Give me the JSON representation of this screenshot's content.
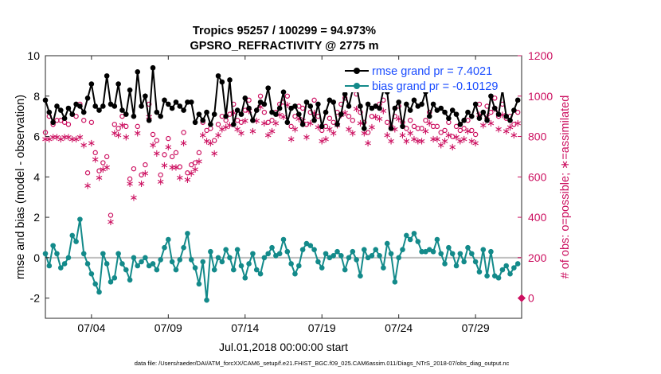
{
  "chart_data": {
    "type": "line",
    "title": "Tropics 95257 / 100299 = 94.973%",
    "subtitle": "GPSRO_REFRACTIVITY @ 2775 m",
    "xlabel": "Jul.01,2018 00:00:00 start",
    "ylabel": "rmse and bias (model - observation)",
    "y2label": "# of obs: o=possible; ∗=assimilated",
    "footer": "data file: /Users/raeder/DAI/ATM_forcXX/CAM6_setup/f.e21.FHIST_BGC.f09_025.CAM6assim.011/Diags_NTrS_2018-07/obs_diag_output.nc",
    "x_ticks": [
      "07/04",
      "07/09",
      "07/14",
      "07/19",
      "07/24",
      "07/29"
    ],
    "x_tick_days": [
      4,
      9,
      14,
      19,
      24,
      29
    ],
    "xlim": [
      1,
      32
    ],
    "ylim": [
      -3,
      10
    ],
    "y_ticks": [
      "-2",
      "0",
      "2",
      "4",
      "6",
      "8",
      "10"
    ],
    "y2lim": [
      -100,
      1200
    ],
    "y2_ticks": [
      "0",
      "200",
      "400",
      "600",
      "800",
      "1000",
      "1200"
    ],
    "legend": [
      {
        "name": "rmse grand pr = 7.4021",
        "color": "#000000"
      },
      {
        "name": "bias grand pr = -0.10129",
        "color": "#138a8a"
      }
    ],
    "colors": {
      "rmse": "#000000",
      "bias": "#138a8a",
      "obs": "#cc1060",
      "zero_line": "#c0c0c0"
    },
    "x": [
      1.0,
      1.25,
      1.5,
      1.75,
      2.0,
      2.25,
      2.5,
      2.75,
      3.0,
      3.25,
      3.5,
      3.75,
      4.0,
      4.25,
      4.5,
      4.75,
      5.0,
      5.25,
      5.5,
      5.75,
      6.0,
      6.25,
      6.5,
      6.75,
      7.0,
      7.25,
      7.5,
      7.75,
      8.0,
      8.25,
      8.5,
      8.75,
      9.0,
      9.25,
      9.5,
      9.75,
      10.0,
      10.25,
      10.5,
      10.75,
      11.0,
      11.25,
      11.5,
      11.75,
      12.0,
      12.25,
      12.5,
      12.75,
      13.0,
      13.25,
      13.5,
      13.75,
      14.0,
      14.25,
      14.5,
      14.75,
      15.0,
      15.25,
      15.5,
      15.75,
      16.0,
      16.25,
      16.5,
      16.75,
      17.0,
      17.25,
      17.5,
      17.75,
      18.0,
      18.25,
      18.5,
      18.75,
      19.0,
      19.25,
      19.5,
      19.75,
      20.0,
      20.25,
      20.5,
      20.75,
      21.0,
      21.25,
      21.5,
      21.75,
      22.0,
      22.25,
      22.5,
      22.75,
      23.0,
      23.25,
      23.5,
      23.75,
      24.0,
      24.25,
      24.5,
      24.75,
      25.0,
      25.25,
      25.5,
      25.75,
      26.0,
      26.25,
      26.5,
      26.75,
      27.0,
      27.25,
      27.5,
      27.75,
      28.0,
      28.25,
      28.5,
      28.75,
      29.0,
      29.25,
      29.5,
      29.75,
      30.0,
      30.25,
      30.5,
      30.75,
      31.0,
      31.25,
      31.5,
      31.75
    ],
    "series": [
      {
        "name": "rmse",
        "values": [
          7.8,
          7.2,
          6.7,
          7.5,
          7.3,
          6.9,
          7.4,
          7.1,
          7.6,
          7.5,
          7.2,
          7.9,
          8.6,
          7.5,
          7.3,
          7.5,
          9.0,
          7.6,
          7.5,
          8.6,
          7.3,
          7.1,
          8.3,
          7.0,
          9.2,
          7.5,
          8.0,
          6.8,
          9.4,
          7.2,
          7.0,
          7.8,
          7.6,
          7.4,
          7.7,
          7.5,
          7.3,
          7.7,
          7.7,
          6.7,
          7.1,
          6.8,
          7.2,
          6.6,
          7.1,
          9.0,
          8.7,
          7.0,
          8.8,
          6.6,
          7.3,
          7.1,
          7.9,
          7.4,
          6.8,
          7.3,
          7.7,
          7.6,
          8.4,
          7.2,
          7.1,
          7.4,
          8.2,
          6.7,
          7.4,
          7.5,
          7.1,
          6.6,
          7.7,
          7.5,
          6.8,
          7.6,
          6.5,
          7.2,
          7.8,
          7.7,
          6.6,
          7.1,
          8.1,
          7.5,
          8.3,
          8.5,
          7.5,
          6.4,
          7.6,
          7.4,
          7.5,
          7.4,
          8.3,
          8.2,
          6.4,
          7.4,
          7.7,
          6.5,
          7.6,
          7.3,
          7.8,
          7.5,
          7.6,
          8.2,
          7.0,
          7.6,
          7.3,
          7.4,
          7.2,
          6.9,
          7.3,
          7.1,
          6.6,
          6.8,
          7.2,
          7.0,
          7.6,
          6.9,
          7.2,
          6.8,
          8.0,
          7.4,
          7.1,
          8.3,
          7.0,
          6.8,
          7.3,
          7.8
        ]
      },
      {
        "name": "bias",
        "values": [
          0.2,
          -0.4,
          0.6,
          0.2,
          -0.5,
          -0.3,
          0.0,
          1.1,
          0.8,
          1.9,
          0.2,
          -0.3,
          -0.8,
          -1.3,
          -1.7,
          0.2,
          -0.3,
          -1.2,
          -1.0,
          0.2,
          -0.3,
          -0.6,
          -1.1,
          0.0,
          -0.4,
          -0.2,
          0.0,
          -0.4,
          -0.3,
          -0.6,
          -0.1,
          0.5,
          0.9,
          -0.2,
          -0.6,
          -0.1,
          0.5,
          1.2,
          -0.1,
          -0.5,
          -1.3,
          -0.2,
          -2.1,
          0.3,
          -0.6,
          0.0,
          -0.2,
          0.4,
          0.0,
          -0.6,
          0.4,
          -0.4,
          -1.0,
          -0.3,
          0.2,
          -0.6,
          -0.8,
          0.0,
          0.2,
          0.5,
          0.1,
          0.2,
          0.9,
          0.3,
          -0.3,
          -0.8,
          -0.4,
          0.4,
          0.7,
          0.6,
          0.4,
          -0.2,
          -0.5,
          0.2,
          0.0,
          0.1,
          0.3,
          0.1,
          -0.6,
          0.0,
          0.3,
          -0.1,
          -0.9,
          0.4,
          0.0,
          0.1,
          0.4,
          0.1,
          -0.5,
          0.7,
          0.2,
          -1.2,
          0.0,
          0.4,
          1.1,
          0.9,
          1.2,
          0.8,
          0.3,
          0.3,
          0.4,
          0.3,
          0.9,
          0.2,
          -0.3,
          0.5,
          0.2,
          -0.4,
          0.2,
          -0.2,
          0.5,
          0.2,
          -0.2,
          -0.7,
          0.4,
          -0.9,
          0.3,
          -0.9,
          -1.0,
          -0.6,
          -0.4,
          -0.8,
          -0.5,
          -0.3
        ]
      }
    ],
    "obs_possible": [
      820,
      900,
      860,
      880,
      880,
      870,
      860,
      910,
      900,
      960,
      880,
      620,
      870,
      720,
      630,
      670,
      700,
      410,
      860,
      840,
      900,
      850,
      590,
      640,
      850,
      610,
      660,
      960,
      810,
      780,
      610,
      710,
      790,
      700,
      720,
      650,
      820,
      620,
      660,
      670,
      720,
      870,
      830,
      840,
      780,
      860,
      900,
      880,
      910,
      960,
      880,
      870,
      930,
      980,
      880,
      930,
      1000,
      920,
      870,
      880,
      920,
      960,
      970,
      1000,
      850,
      900,
      950,
      940,
      860,
      920,
      980,
      900,
      830,
      850,
      890,
      870,
      920,
      960,
      990,
      900,
      880,
      1010,
      920,
      870,
      820,
      900,
      950,
      960,
      980,
      870,
      850,
      900,
      950,
      870,
      840,
      880,
      850,
      840,
      840,
      880,
      920,
      850,
      850,
      820,
      830,
      870,
      800,
      850,
      830,
      840,
      880,
      830,
      810,
      960,
      920,
      950,
      920,
      990,
      900,
      960,
      890,
      900,
      860,
      920
    ],
    "obs_assimilated": [
      790,
      790,
      800,
      800,
      790,
      800,
      800,
      790,
      790,
      800,
      760,
      560,
      770,
      690,
      600,
      640,
      650,
      380,
      820,
      810,
      860,
      800,
      570,
      500,
      820,
      570,
      620,
      900,
      760,
      720,
      580,
      660,
      750,
      650,
      650,
      600,
      770,
      590,
      620,
      640,
      680,
      810,
      780,
      770,
      720,
      810,
      840,
      850,
      860,
      920,
      840,
      820,
      880,
      930,
      830,
      880,
      950,
      870,
      810,
      830,
      870,
      910,
      900,
      960,
      790,
      840,
      890,
      880,
      800,
      870,
      920,
      850,
      780,
      790,
      840,
      820,
      860,
      910,
      920,
      840,
      820,
      940,
      870,
      820,
      770,
      850,
      900,
      890,
      930,
      810,
      780,
      840,
      890,
      810,
      780,
      820,
      790,
      780,
      780,
      830,
      870,
      790,
      790,
      760,
      780,
      810,
      750,
      800,
      780,
      790,
      830,
      780,
      770,
      910,
      860,
      900,
      870,
      940,
      840,
      910,
      830,
      850,
      810,
      870
    ],
    "right_edge_marker": {
      "x": 32,
      "y2": 0
    }
  }
}
